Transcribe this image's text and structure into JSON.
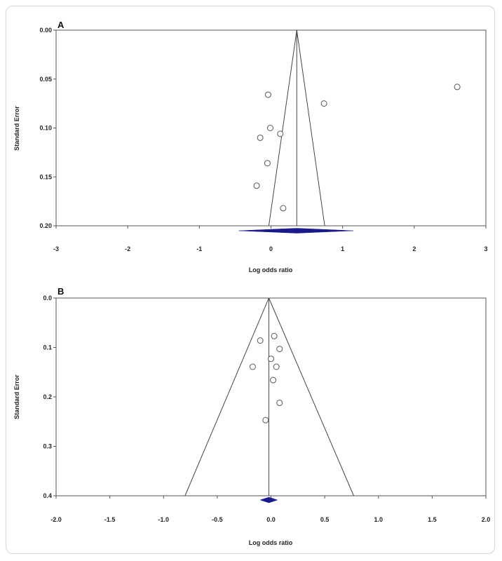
{
  "chart_data": [
    {
      "panel_label": "A",
      "type": "scatter",
      "subtype": "funnel-plot",
      "xlabel": "Log odds ratio",
      "ylabel": "Standard Error",
      "xlim": [
        -3,
        3
      ],
      "ylim": [
        0.0,
        0.2
      ],
      "y_inverted": true,
      "x_ticks": [
        "-3",
        "-2",
        "-1",
        "0",
        "1",
        "2",
        "3"
      ],
      "y_ticks": [
        "0.00",
        "0.05",
        "0.10",
        "0.15",
        "0.20"
      ],
      "pooled_estimate": 0.36,
      "funnel": {
        "apex": [
          0.36,
          0.0
        ],
        "base_left": -0.03,
        "base_right": 0.75
      },
      "diamond": {
        "center": 0.36,
        "low": -0.45,
        "high": 1.15
      },
      "points": [
        {
          "x": -0.04,
          "y": 0.066
        },
        {
          "x": 0.74,
          "y": 0.075
        },
        {
          "x": 2.6,
          "y": 0.058
        },
        {
          "x": -0.01,
          "y": 0.1
        },
        {
          "x": 0.13,
          "y": 0.106
        },
        {
          "x": -0.15,
          "y": 0.11
        },
        {
          "x": -0.05,
          "y": 0.136
        },
        {
          "x": -0.2,
          "y": 0.159
        },
        {
          "x": 0.17,
          "y": 0.182
        }
      ]
    },
    {
      "panel_label": "B",
      "type": "scatter",
      "subtype": "funnel-plot",
      "xlabel": "Log odds ratio",
      "ylabel": "Standard Error",
      "xlim": [
        -2.0,
        2.0
      ],
      "ylim": [
        0.0,
        0.4
      ],
      "y_inverted": true,
      "x_ticks": [
        "-2.0",
        "-1.5",
        "-1.0",
        "-0.5",
        "0.0",
        "0.5",
        "1.0",
        "1.5",
        "2.0"
      ],
      "y_ticks": [
        "0.0",
        "0.1",
        "0.2",
        "0.3",
        "0.4"
      ],
      "pooled_estimate": -0.02,
      "funnel": {
        "apex": [
          -0.02,
          0.0
        ],
        "base_left": -0.8,
        "base_right": 0.77
      },
      "diamond": {
        "center": -0.02,
        "low": -0.1,
        "high": 0.06
      },
      "points": [
        {
          "x": 0.03,
          "y": 0.077
        },
        {
          "x": -0.1,
          "y": 0.086
        },
        {
          "x": 0.08,
          "y": 0.103
        },
        {
          "x": 0.0,
          "y": 0.123
        },
        {
          "x": -0.17,
          "y": 0.139
        },
        {
          "x": 0.05,
          "y": 0.139
        },
        {
          "x": 0.02,
          "y": 0.166
        },
        {
          "x": 0.08,
          "y": 0.212
        },
        {
          "x": -0.05,
          "y": 0.247
        }
      ]
    }
  ],
  "colors": {
    "diamond": "#1a1a8c",
    "axis": "#555555",
    "line": "#444444",
    "marker_stroke": "#555555"
  }
}
